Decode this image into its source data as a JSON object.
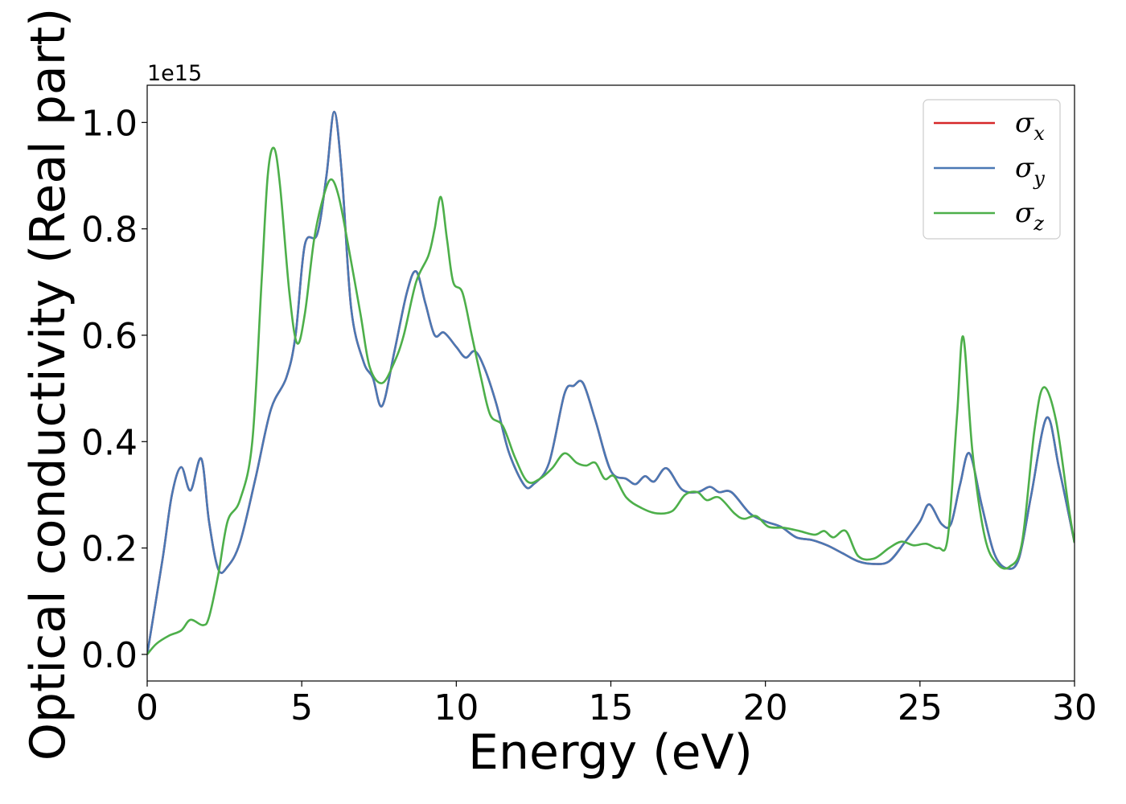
{
  "chart_data": {
    "type": "line",
    "title": "",
    "xlabel": "Energy (eV)",
    "ylabel": "Optical conductivity (Real part)",
    "y_offset_label": "1e15",
    "xlim": [
      0,
      30
    ],
    "ylim": [
      -0.05,
      1.07
    ],
    "x_ticks": [
      0,
      5,
      10,
      15,
      20,
      25,
      30
    ],
    "x_tick_labels": [
      "0",
      "5",
      "10",
      "15",
      "20",
      "25",
      "30"
    ],
    "y_ticks": [
      0.0,
      0.2,
      0.4,
      0.6,
      0.8,
      1.0
    ],
    "y_tick_labels": [
      "0.0",
      "0.2",
      "0.4",
      "0.6",
      "0.8",
      "1.0"
    ],
    "grid": false,
    "legend_position": "top-right",
    "series": [
      {
        "name": "σx",
        "symbol": "σ",
        "subscript": "x",
        "color": "#d62728",
        "points": [
          [
            0,
            0
          ],
          [
            0.5,
            0.18
          ],
          [
            0.8,
            0.3
          ],
          [
            1.1,
            0.352
          ],
          [
            1.4,
            0.308
          ],
          [
            1.75,
            0.368
          ],
          [
            2.0,
            0.25
          ],
          [
            2.3,
            0.16
          ],
          [
            2.6,
            0.165
          ],
          [
            3.0,
            0.21
          ],
          [
            3.5,
            0.33
          ],
          [
            4.0,
            0.46
          ],
          [
            4.5,
            0.52
          ],
          [
            4.8,
            0.6
          ],
          [
            5.1,
            0.77
          ],
          [
            5.5,
            0.79
          ],
          [
            5.8,
            0.9
          ],
          [
            6.05,
            1.02
          ],
          [
            6.3,
            0.9
          ],
          [
            6.6,
            0.65
          ],
          [
            7.0,
            0.55
          ],
          [
            7.3,
            0.52
          ],
          [
            7.6,
            0.467
          ],
          [
            8.0,
            0.57
          ],
          [
            8.4,
            0.68
          ],
          [
            8.7,
            0.72
          ],
          [
            9.0,
            0.66
          ],
          [
            9.3,
            0.6
          ],
          [
            9.6,
            0.605
          ],
          [
            10.0,
            0.578
          ],
          [
            10.3,
            0.558
          ],
          [
            10.6,
            0.57
          ],
          [
            10.9,
            0.54
          ],
          [
            11.3,
            0.47
          ],
          [
            11.7,
            0.38
          ],
          [
            12.2,
            0.318
          ],
          [
            12.5,
            0.32
          ],
          [
            13.0,
            0.36
          ],
          [
            13.5,
            0.49
          ],
          [
            13.8,
            0.505
          ],
          [
            14.1,
            0.51
          ],
          [
            14.5,
            0.44
          ],
          [
            15.0,
            0.345
          ],
          [
            15.5,
            0.33
          ],
          [
            15.8,
            0.32
          ],
          [
            16.1,
            0.335
          ],
          [
            16.4,
            0.325
          ],
          [
            16.8,
            0.35
          ],
          [
            17.3,
            0.31
          ],
          [
            17.8,
            0.305
          ],
          [
            18.2,
            0.315
          ],
          [
            18.5,
            0.305
          ],
          [
            18.9,
            0.305
          ],
          [
            19.5,
            0.265
          ],
          [
            20.0,
            0.25
          ],
          [
            20.5,
            0.24
          ],
          [
            21.0,
            0.22
          ],
          [
            21.5,
            0.215
          ],
          [
            22.0,
            0.205
          ],
          [
            22.5,
            0.19
          ],
          [
            23.0,
            0.175
          ],
          [
            23.5,
            0.17
          ],
          [
            24.0,
            0.175
          ],
          [
            24.5,
            0.21
          ],
          [
            25.0,
            0.25
          ],
          [
            25.3,
            0.282
          ],
          [
            25.7,
            0.245
          ],
          [
            26.0,
            0.245
          ],
          [
            26.3,
            0.32
          ],
          [
            26.6,
            0.378
          ],
          [
            27.0,
            0.28
          ],
          [
            27.4,
            0.19
          ],
          [
            27.8,
            0.162
          ],
          [
            28.2,
            0.18
          ],
          [
            28.6,
            0.3
          ],
          [
            29.1,
            0.445
          ],
          [
            29.5,
            0.35
          ],
          [
            30.0,
            0.21
          ]
        ]
      },
      {
        "name": "σy",
        "symbol": "σ",
        "subscript": "y",
        "color": "#4a78b4",
        "points": [
          [
            0,
            0
          ],
          [
            0.5,
            0.18
          ],
          [
            0.8,
            0.3
          ],
          [
            1.1,
            0.352
          ],
          [
            1.4,
            0.308
          ],
          [
            1.75,
            0.368
          ],
          [
            2.0,
            0.25
          ],
          [
            2.3,
            0.16
          ],
          [
            2.6,
            0.165
          ],
          [
            3.0,
            0.21
          ],
          [
            3.5,
            0.33
          ],
          [
            4.0,
            0.46
          ],
          [
            4.5,
            0.52
          ],
          [
            4.8,
            0.6
          ],
          [
            5.1,
            0.77
          ],
          [
            5.5,
            0.79
          ],
          [
            5.8,
            0.9
          ],
          [
            6.05,
            1.02
          ],
          [
            6.3,
            0.9
          ],
          [
            6.6,
            0.65
          ],
          [
            7.0,
            0.55
          ],
          [
            7.3,
            0.52
          ],
          [
            7.6,
            0.467
          ],
          [
            8.0,
            0.57
          ],
          [
            8.4,
            0.68
          ],
          [
            8.7,
            0.72
          ],
          [
            9.0,
            0.66
          ],
          [
            9.3,
            0.6
          ],
          [
            9.6,
            0.605
          ],
          [
            10.0,
            0.578
          ],
          [
            10.3,
            0.558
          ],
          [
            10.6,
            0.57
          ],
          [
            10.9,
            0.54
          ],
          [
            11.3,
            0.47
          ],
          [
            11.7,
            0.38
          ],
          [
            12.2,
            0.318
          ],
          [
            12.5,
            0.32
          ],
          [
            13.0,
            0.36
          ],
          [
            13.5,
            0.49
          ],
          [
            13.8,
            0.505
          ],
          [
            14.1,
            0.51
          ],
          [
            14.5,
            0.44
          ],
          [
            15.0,
            0.345
          ],
          [
            15.5,
            0.33
          ],
          [
            15.8,
            0.32
          ],
          [
            16.1,
            0.335
          ],
          [
            16.4,
            0.325
          ],
          [
            16.8,
            0.35
          ],
          [
            17.3,
            0.31
          ],
          [
            17.8,
            0.305
          ],
          [
            18.2,
            0.315
          ],
          [
            18.5,
            0.305
          ],
          [
            18.9,
            0.305
          ],
          [
            19.5,
            0.265
          ],
          [
            20.0,
            0.25
          ],
          [
            20.5,
            0.24
          ],
          [
            21.0,
            0.22
          ],
          [
            21.5,
            0.215
          ],
          [
            22.0,
            0.205
          ],
          [
            22.5,
            0.19
          ],
          [
            23.0,
            0.175
          ],
          [
            23.5,
            0.17
          ],
          [
            24.0,
            0.175
          ],
          [
            24.5,
            0.21
          ],
          [
            25.0,
            0.25
          ],
          [
            25.3,
            0.282
          ],
          [
            25.7,
            0.245
          ],
          [
            26.0,
            0.245
          ],
          [
            26.3,
            0.32
          ],
          [
            26.6,
            0.378
          ],
          [
            27.0,
            0.28
          ],
          [
            27.4,
            0.19
          ],
          [
            27.8,
            0.162
          ],
          [
            28.2,
            0.18
          ],
          [
            28.6,
            0.3
          ],
          [
            29.1,
            0.445
          ],
          [
            29.5,
            0.35
          ],
          [
            30.0,
            0.21
          ]
        ]
      },
      {
        "name": "σz",
        "symbol": "σ",
        "subscript": "z",
        "color": "#4daf4a",
        "points": [
          [
            0,
            0
          ],
          [
            0.3,
            0.02
          ],
          [
            0.7,
            0.035
          ],
          [
            1.1,
            0.045
          ],
          [
            1.4,
            0.065
          ],
          [
            1.8,
            0.055
          ],
          [
            2.0,
            0.07
          ],
          [
            2.3,
            0.15
          ],
          [
            2.6,
            0.25
          ],
          [
            3.0,
            0.29
          ],
          [
            3.4,
            0.4
          ],
          [
            3.7,
            0.7
          ],
          [
            3.9,
            0.9
          ],
          [
            4.1,
            0.952
          ],
          [
            4.3,
            0.88
          ],
          [
            4.6,
            0.68
          ],
          [
            4.85,
            0.585
          ],
          [
            5.1,
            0.64
          ],
          [
            5.4,
            0.78
          ],
          [
            5.7,
            0.86
          ],
          [
            5.95,
            0.893
          ],
          [
            6.2,
            0.86
          ],
          [
            6.5,
            0.77
          ],
          [
            6.9,
            0.64
          ],
          [
            7.2,
            0.54
          ],
          [
            7.6,
            0.51
          ],
          [
            8.0,
            0.55
          ],
          [
            8.3,
            0.6
          ],
          [
            8.7,
            0.7
          ],
          [
            9.1,
            0.75
          ],
          [
            9.3,
            0.8
          ],
          [
            9.5,
            0.86
          ],
          [
            9.7,
            0.78
          ],
          [
            9.9,
            0.7
          ],
          [
            10.2,
            0.68
          ],
          [
            10.5,
            0.6
          ],
          [
            10.8,
            0.52
          ],
          [
            11.1,
            0.45
          ],
          [
            11.5,
            0.43
          ],
          [
            11.9,
            0.37
          ],
          [
            12.3,
            0.325
          ],
          [
            12.7,
            0.33
          ],
          [
            13.1,
            0.35
          ],
          [
            13.5,
            0.378
          ],
          [
            13.9,
            0.36
          ],
          [
            14.2,
            0.355
          ],
          [
            14.5,
            0.36
          ],
          [
            14.8,
            0.33
          ],
          [
            15.1,
            0.335
          ],
          [
            15.5,
            0.295
          ],
          [
            16.0,
            0.275
          ],
          [
            16.5,
            0.265
          ],
          [
            17.0,
            0.27
          ],
          [
            17.4,
            0.3
          ],
          [
            17.8,
            0.305
          ],
          [
            18.1,
            0.29
          ],
          [
            18.5,
            0.295
          ],
          [
            19.0,
            0.265
          ],
          [
            19.3,
            0.255
          ],
          [
            19.7,
            0.26
          ],
          [
            20.1,
            0.24
          ],
          [
            20.6,
            0.238
          ],
          [
            21.1,
            0.232
          ],
          [
            21.6,
            0.225
          ],
          [
            21.9,
            0.232
          ],
          [
            22.2,
            0.22
          ],
          [
            22.6,
            0.232
          ],
          [
            23.0,
            0.185
          ],
          [
            23.5,
            0.18
          ],
          [
            24.0,
            0.2
          ],
          [
            24.4,
            0.212
          ],
          [
            24.8,
            0.205
          ],
          [
            25.2,
            0.208
          ],
          [
            25.6,
            0.2
          ],
          [
            25.9,
            0.22
          ],
          [
            26.2,
            0.45
          ],
          [
            26.4,
            0.597
          ],
          [
            26.7,
            0.38
          ],
          [
            27.1,
            0.22
          ],
          [
            27.5,
            0.17
          ],
          [
            27.9,
            0.165
          ],
          [
            28.3,
            0.21
          ],
          [
            28.7,
            0.42
          ],
          [
            29.0,
            0.502
          ],
          [
            29.4,
            0.44
          ],
          [
            29.8,
            0.28
          ],
          [
            30.0,
            0.21
          ]
        ]
      }
    ]
  }
}
